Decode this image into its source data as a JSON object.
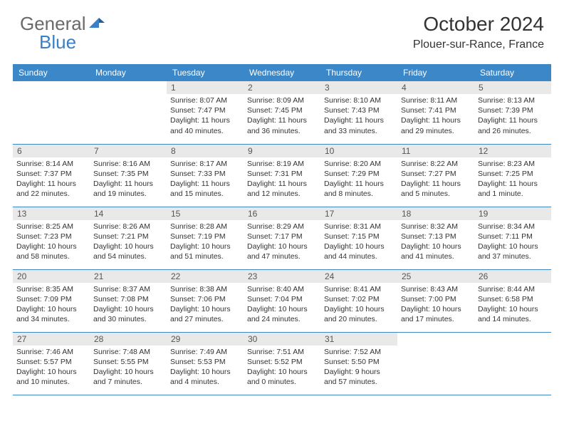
{
  "logo": {
    "general": "General",
    "blue": "Blue"
  },
  "title": "October 2024",
  "location": "Plouer-sur-Rance, France",
  "colors": {
    "header_bar": "#3b87c8",
    "day_band": "#e9e9e9",
    "text": "#333333",
    "logo_gray": "#6a6a6a",
    "logo_blue": "#3b7fc4"
  },
  "dow": [
    "Sunday",
    "Monday",
    "Tuesday",
    "Wednesday",
    "Thursday",
    "Friday",
    "Saturday"
  ],
  "weeks": [
    [
      null,
      null,
      {
        "n": "1",
        "sr": "8:07 AM",
        "ss": "7:47 PM",
        "dl": "11 hours and 40 minutes."
      },
      {
        "n": "2",
        "sr": "8:09 AM",
        "ss": "7:45 PM",
        "dl": "11 hours and 36 minutes."
      },
      {
        "n": "3",
        "sr": "8:10 AM",
        "ss": "7:43 PM",
        "dl": "11 hours and 33 minutes."
      },
      {
        "n": "4",
        "sr": "8:11 AM",
        "ss": "7:41 PM",
        "dl": "11 hours and 29 minutes."
      },
      {
        "n": "5",
        "sr": "8:13 AM",
        "ss": "7:39 PM",
        "dl": "11 hours and 26 minutes."
      }
    ],
    [
      {
        "n": "6",
        "sr": "8:14 AM",
        "ss": "7:37 PM",
        "dl": "11 hours and 22 minutes."
      },
      {
        "n": "7",
        "sr": "8:16 AM",
        "ss": "7:35 PM",
        "dl": "11 hours and 19 minutes."
      },
      {
        "n": "8",
        "sr": "8:17 AM",
        "ss": "7:33 PM",
        "dl": "11 hours and 15 minutes."
      },
      {
        "n": "9",
        "sr": "8:19 AM",
        "ss": "7:31 PM",
        "dl": "11 hours and 12 minutes."
      },
      {
        "n": "10",
        "sr": "8:20 AM",
        "ss": "7:29 PM",
        "dl": "11 hours and 8 minutes."
      },
      {
        "n": "11",
        "sr": "8:22 AM",
        "ss": "7:27 PM",
        "dl": "11 hours and 5 minutes."
      },
      {
        "n": "12",
        "sr": "8:23 AM",
        "ss": "7:25 PM",
        "dl": "11 hours and 1 minute."
      }
    ],
    [
      {
        "n": "13",
        "sr": "8:25 AM",
        "ss": "7:23 PM",
        "dl": "10 hours and 58 minutes."
      },
      {
        "n": "14",
        "sr": "8:26 AM",
        "ss": "7:21 PM",
        "dl": "10 hours and 54 minutes."
      },
      {
        "n": "15",
        "sr": "8:28 AM",
        "ss": "7:19 PM",
        "dl": "10 hours and 51 minutes."
      },
      {
        "n": "16",
        "sr": "8:29 AM",
        "ss": "7:17 PM",
        "dl": "10 hours and 47 minutes."
      },
      {
        "n": "17",
        "sr": "8:31 AM",
        "ss": "7:15 PM",
        "dl": "10 hours and 44 minutes."
      },
      {
        "n": "18",
        "sr": "8:32 AM",
        "ss": "7:13 PM",
        "dl": "10 hours and 41 minutes."
      },
      {
        "n": "19",
        "sr": "8:34 AM",
        "ss": "7:11 PM",
        "dl": "10 hours and 37 minutes."
      }
    ],
    [
      {
        "n": "20",
        "sr": "8:35 AM",
        "ss": "7:09 PM",
        "dl": "10 hours and 34 minutes."
      },
      {
        "n": "21",
        "sr": "8:37 AM",
        "ss": "7:08 PM",
        "dl": "10 hours and 30 minutes."
      },
      {
        "n": "22",
        "sr": "8:38 AM",
        "ss": "7:06 PM",
        "dl": "10 hours and 27 minutes."
      },
      {
        "n": "23",
        "sr": "8:40 AM",
        "ss": "7:04 PM",
        "dl": "10 hours and 24 minutes."
      },
      {
        "n": "24",
        "sr": "8:41 AM",
        "ss": "7:02 PM",
        "dl": "10 hours and 20 minutes."
      },
      {
        "n": "25",
        "sr": "8:43 AM",
        "ss": "7:00 PM",
        "dl": "10 hours and 17 minutes."
      },
      {
        "n": "26",
        "sr": "8:44 AM",
        "ss": "6:58 PM",
        "dl": "10 hours and 14 minutes."
      }
    ],
    [
      {
        "n": "27",
        "sr": "7:46 AM",
        "ss": "5:57 PM",
        "dl": "10 hours and 10 minutes."
      },
      {
        "n": "28",
        "sr": "7:48 AM",
        "ss": "5:55 PM",
        "dl": "10 hours and 7 minutes."
      },
      {
        "n": "29",
        "sr": "7:49 AM",
        "ss": "5:53 PM",
        "dl": "10 hours and 4 minutes."
      },
      {
        "n": "30",
        "sr": "7:51 AM",
        "ss": "5:52 PM",
        "dl": "10 hours and 0 minutes."
      },
      {
        "n": "31",
        "sr": "7:52 AM",
        "ss": "5:50 PM",
        "dl": "9 hours and 57 minutes."
      },
      null,
      null
    ]
  ],
  "labels": {
    "sunrise": "Sunrise:",
    "sunset": "Sunset:",
    "daylight": "Daylight:"
  }
}
